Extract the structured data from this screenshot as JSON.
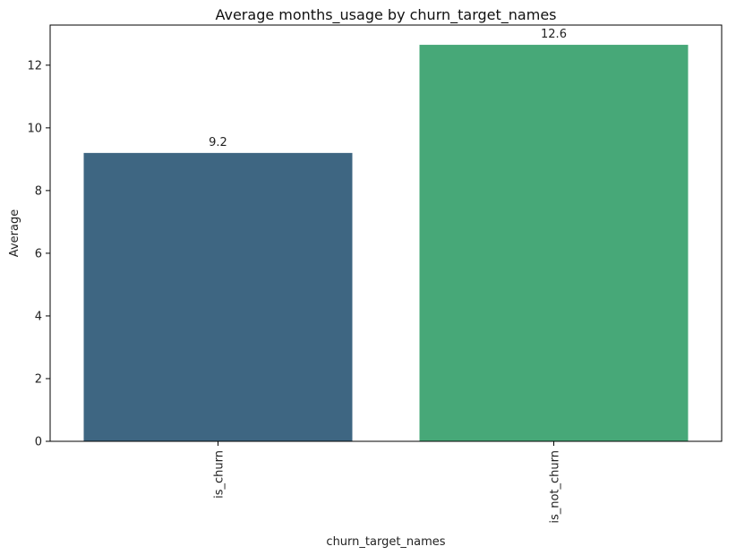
{
  "chart_data": {
    "type": "bar",
    "title": "Average months_usage by churn_target_names",
    "xlabel": "churn_target_names",
    "ylabel": "Average",
    "categories": [
      "is_churn",
      "is_not_churn"
    ],
    "values": [
      9.2,
      12.65
    ],
    "data_labels": [
      "9.2",
      "12.6"
    ],
    "colors": [
      "#3e6682",
      "#47a878"
    ],
    "ylim": [
      0,
      13.28
    ],
    "yticks": [
      0,
      2,
      4,
      6,
      8,
      10,
      12
    ],
    "ytick_labels": [
      "0",
      "2",
      "4",
      "6",
      "8",
      "10",
      "12"
    ],
    "grid": false,
    "legend": "none"
  }
}
